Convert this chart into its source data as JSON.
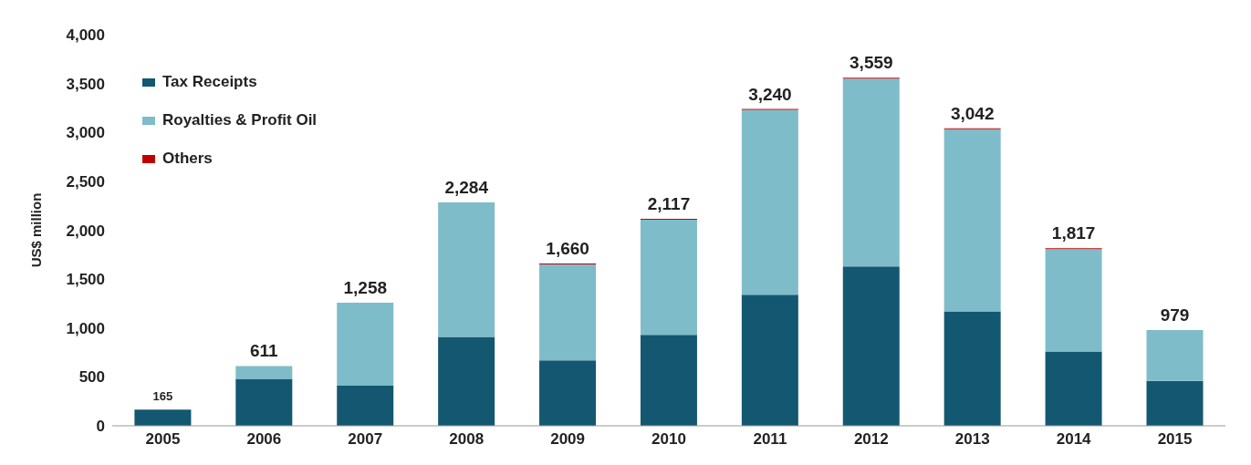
{
  "chart_data": {
    "type": "bar",
    "stacked": true,
    "ylabel": "US$ million",
    "categories": [
      "2005",
      "2006",
      "2007",
      "2008",
      "2009",
      "2010",
      "2011",
      "2012",
      "2013",
      "2014",
      "2015"
    ],
    "series": [
      {
        "name": "Tax Receipts",
        "color": "#135870",
        "values": [
          165,
          480,
          410,
          910,
          670,
          930,
          1340,
          1630,
          1170,
          760,
          460
        ]
      },
      {
        "name": "Royalties & Profit Oil",
        "color": "#7fbcc9",
        "values": [
          0,
          131,
          848,
          1374,
          980,
          1177,
          1890,
          1919,
          1862,
          1047,
          519
        ]
      },
      {
        "name": "Others",
        "color": "#c00000",
        "values": [
          0,
          0,
          0,
          0,
          10,
          10,
          10,
          10,
          10,
          10,
          0
        ]
      }
    ],
    "totals": [
      "165",
      "611",
      "1,258",
      "2,284",
      "1,660",
      "2,117",
      "3,240",
      "3,559",
      "3,042",
      "1,817",
      "979"
    ],
    "ylim": [
      0,
      4000
    ],
    "yticks": [
      0,
      {
        "value": 500,
        "label": "500"
      },
      {
        "value": 1000,
        "label": "1,000"
      },
      {
        "value": 1500,
        "label": "1,500"
      },
      {
        "value": 2000,
        "label": "2,000"
      },
      {
        "value": 2500,
        "label": "2,500"
      },
      {
        "value": 3000,
        "label": "3,000"
      },
      {
        "value": 3500,
        "label": "3,500"
      },
      {
        "value": 4000,
        "label": "4,000"
      }
    ],
    "grid": false,
    "legend": "top left"
  }
}
